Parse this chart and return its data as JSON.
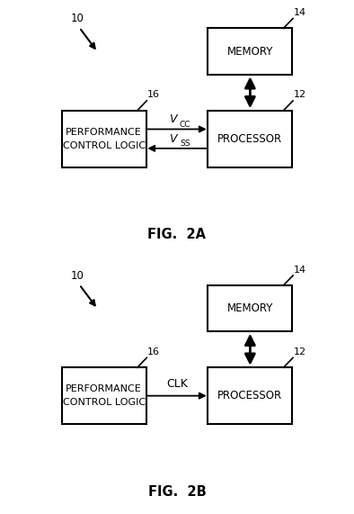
{
  "bg_color": "#ffffff",
  "box_color": "#ffffff",
  "box_edge_color": "#000000",
  "text_color": "#000000",
  "line_color": "#000000",
  "fig_width": 3.94,
  "fig_height": 5.71,
  "diagrams": [
    {
      "label": "FIG.  2A",
      "ref_num_system": "10",
      "ref_num_memory": "14",
      "ref_num_processor": "12",
      "ref_num_pcl": "16",
      "pcl_text": "PERFORMANCE\nCONTROL LOGIC",
      "memory_text": "MEMORY",
      "processor_text": "PROCESSOR",
      "has_two_signals": true,
      "signal1_main": "V",
      "signal1_sub": "CC",
      "signal2_main": "V",
      "signal2_sub": "SS"
    },
    {
      "label": "FIG.  2B",
      "ref_num_system": "10",
      "ref_num_memory": "14",
      "ref_num_processor": "12",
      "ref_num_pcl": "16",
      "pcl_text": "PERFORMANCE\nCONTROL LOGIC",
      "memory_text": "MEMORY",
      "processor_text": "PROCESSOR",
      "has_two_signals": false,
      "signal1_main": "CLK",
      "signal1_sub": ""
    }
  ]
}
